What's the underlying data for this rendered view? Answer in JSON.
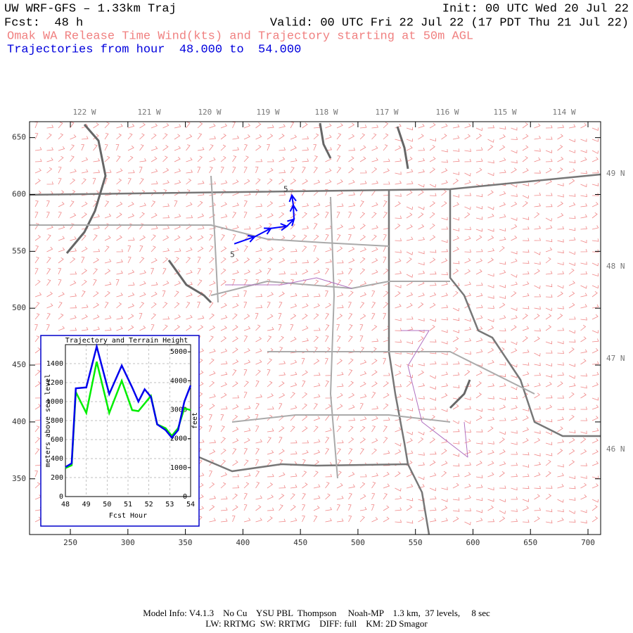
{
  "header": {
    "title": "UW WRF-GFS – 1.33km Traj",
    "init": "Init: 00 UTC Wed 20 Jul 22",
    "fcst": "Fcst:  48 h",
    "valid": "Valid: 00 UTC Fri 22 Jul 22 (17 PDT Thu 21 Jul 22)",
    "subtitle": "Omak WA Release Time Wind(kts) and Trajectory starting at 50m AGL",
    "traj_range": "Trajectories from hour  48.000 to  54.000"
  },
  "map": {
    "xlim": [
      214.5,
      711
    ],
    "ylim": [
      301,
      664
    ],
    "xticks": [
      250,
      300,
      350,
      400,
      450,
      500,
      550,
      600,
      650,
      700
    ],
    "yticks": [
      350,
      400,
      450,
      500,
      550,
      600,
      650
    ],
    "lon_labels": [
      "122 W",
      "121 W",
      "120 W",
      "119 W",
      "118 W",
      "117 W",
      "116 W",
      "115 W",
      "114 W"
    ],
    "lat_labels": [
      "49 N",
      "48 N",
      "47 N",
      "46 N"
    ],
    "trajectory": {
      "label": "5",
      "color": "#0000ff",
      "x": [
        392.5,
        410.2,
        424.3,
        438.3,
        444.4,
        443.8,
        442.6
      ],
      "y": [
        556.6,
        562.8,
        570.2,
        572.1,
        578.2,
        590.6,
        599.3
      ]
    }
  },
  "chart_data": {
    "type": "line",
    "title": "Trajectory and Terrain Height",
    "y_label": "meters above sea level",
    "y2_label": "feet",
    "x_label": "Fcst Hour",
    "x": [
      48,
      48.3,
      48.5,
      49,
      49.5,
      50.1,
      50.7,
      51.2,
      51.5,
      51.8,
      52.1,
      52.4,
      52.8,
      53.1,
      53.4,
      53.7,
      54
    ],
    "xlim": [
      48,
      54
    ],
    "xticks": [
      48,
      49,
      50,
      51,
      52,
      53,
      54
    ],
    "ylim": [
      0,
      1600
    ],
    "yticks": [
      0,
      200,
      400,
      600,
      800,
      1000,
      1200,
      1400
    ],
    "y2lim": [
      0,
      5249
    ],
    "y2ticks": [
      0,
      1000,
      2000,
      3000,
      4000,
      5000
    ],
    "grid": true,
    "series": [
      {
        "name": "Terrain",
        "color": "#00ee00",
        "values": [
          300,
          330,
          1100,
          880,
          1420,
          880,
          1220,
          910,
          900,
          980,
          1060,
          760,
          720,
          640,
          720,
          930,
          910
        ]
      },
      {
        "name": "Trajectory",
        "color": "#0000ee",
        "values": [
          310,
          350,
          1140,
          1150,
          1580,
          1080,
          1380,
          1150,
          1000,
          1130,
          1050,
          760,
          700,
          620,
          700,
          1000,
          1170
        ]
      }
    ]
  },
  "footer": {
    "line1": "Model Info: V4.1.3    No Cu    YSU PBL  Thompson     Noah-MP    1.3 km,  37 levels,     8 sec",
    "line2": "LW: RRTMG  SW: RRTMG    DIFF: full    KM: 2D Smagor"
  }
}
